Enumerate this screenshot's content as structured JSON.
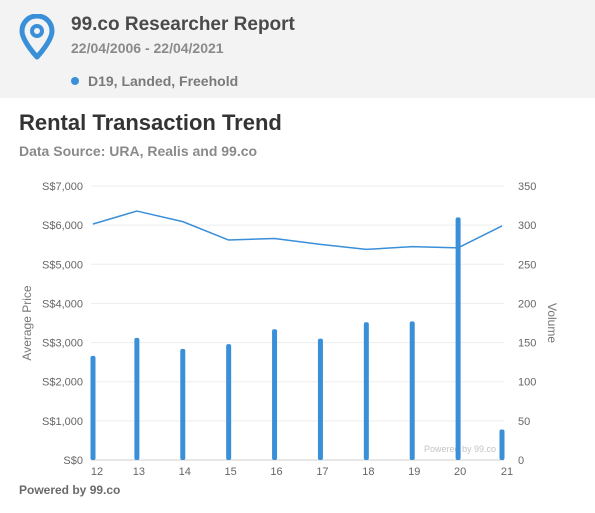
{
  "header": {
    "title": "99.co Researcher Report",
    "date_range": "22/04/2006 - 22/04/2021",
    "filter": "D19, Landed, Freehold",
    "filter_color": "#3a8fd9",
    "logo_icon": "map-pin-icon"
  },
  "chart_header": {
    "title": "Rental Transaction Trend",
    "source": "Data Source: URA, Realis and 99.co"
  },
  "chart_data": {
    "type": "bar",
    "x": [
      "12",
      "13",
      "14",
      "15",
      "16",
      "17",
      "18",
      "19",
      "20",
      "21"
    ],
    "left_axis": {
      "label": "Average Price",
      "ticks": [
        "S$0",
        "S$1,000",
        "S$2,000",
        "S$3,000",
        "S$4,000",
        "S$5,000",
        "S$6,000",
        "S$7,000"
      ],
      "ylim": [
        0,
        7000
      ]
    },
    "right_axis": {
      "label": "Volume",
      "ticks": [
        "0",
        "50",
        "100",
        "150",
        "200",
        "250",
        "300",
        "350"
      ],
      "ylim": [
        0,
        350
      ]
    },
    "series": [
      {
        "type": "bar",
        "axis": "right",
        "color": "#3a8fd9",
        "values": [
          133,
          156,
          142,
          148,
          167,
          155,
          176,
          177,
          310,
          39
        ]
      },
      {
        "type": "line",
        "axis": "left",
        "color": "#3a8fd9",
        "values": [
          6030,
          6360,
          6090,
          5620,
          5660,
          5510,
          5380,
          5450,
          5420,
          5980
        ]
      }
    ],
    "grid": true,
    "watermark": "Powered by 99.co"
  },
  "footer": {
    "powered_by": "Powered by 99.co"
  }
}
